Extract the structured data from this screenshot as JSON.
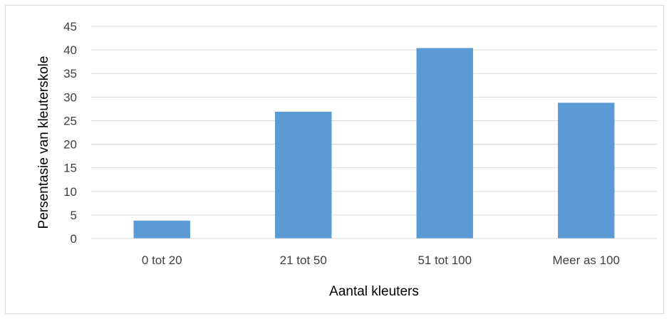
{
  "chart_data": {
    "type": "bar",
    "categories": [
      "0 tot 20",
      "21 tot 50",
      "51 tot 100",
      "Meer as 100"
    ],
    "values": [
      3.8,
      26.9,
      40.4,
      28.8
    ],
    "xlabel": "Aantal kleuters",
    "ylabel": "Persentasie van kleuterskole",
    "ylim": [
      0,
      45
    ],
    "ytick_values": [
      0,
      5,
      10,
      15,
      20,
      25,
      30,
      35,
      40,
      45
    ],
    "ytick_labels": [
      "0",
      "5",
      "10",
      "15",
      "20",
      "25",
      "30",
      "35",
      "40",
      "45"
    ],
    "grid": true,
    "legend": "none",
    "bar_color": "#5b9bd5",
    "grid_color": "#d9d9d9"
  }
}
